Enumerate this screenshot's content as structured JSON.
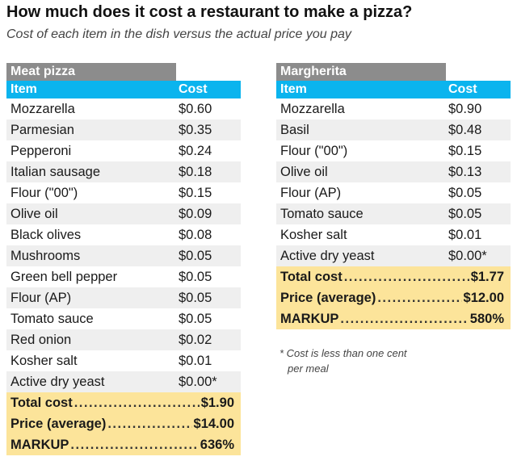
{
  "title": "How much does it cost a restaurant to make a pizza?",
  "subtitle": "Cost of each item in the dish versus the actual price you pay",
  "colors": {
    "header_bg": "#0bb4ee",
    "name_bg": "#8c8c8c",
    "total_bg": "#fce49a",
    "stripe_bg": "#efefef"
  },
  "meat": {
    "name": "Meat pizza",
    "col_item": "Item",
    "col_cost": "Cost",
    "items": [
      {
        "item": "Mozzarella",
        "cost": "$0.60"
      },
      {
        "item": "Parmesian",
        "cost": "$0.35"
      },
      {
        "item": "Pepperoni",
        "cost": "$0.24"
      },
      {
        "item": "Italian sausage",
        "cost": "$0.18"
      },
      {
        "item": "Flour (\"00\")",
        "cost": "$0.15"
      },
      {
        "item": "Olive oil",
        "cost": "$0.09"
      },
      {
        "item": "Black olives",
        "cost": "$0.08"
      },
      {
        "item": "Mushrooms",
        "cost": "$0.05"
      },
      {
        "item": "Green bell pepper",
        "cost": "$0.05"
      },
      {
        "item": "Flour (AP)",
        "cost": "$0.05"
      },
      {
        "item": "Tomato sauce",
        "cost": "$0.05"
      },
      {
        "item": "Red onion",
        "cost": "$0.02"
      },
      {
        "item": "Kosher salt",
        "cost": "$0.01"
      },
      {
        "item": "Active dry yeast",
        "cost": "$0.00*"
      }
    ],
    "totals": [
      {
        "label": "Total cost",
        "value": "$1.90"
      },
      {
        "label": "Price (average)",
        "value": "$14.00"
      },
      {
        "label": "MARKUP",
        "value": "636%"
      }
    ]
  },
  "margherita": {
    "name": "Margherita",
    "col_item": "Item",
    "col_cost": "Cost",
    "items": [
      {
        "item": "Mozzarella",
        "cost": "$0.90"
      },
      {
        "item": "Basil",
        "cost": "$0.48"
      },
      {
        "item": "Flour (\"00\")",
        "cost": "$0.15"
      },
      {
        "item": "Olive oil",
        "cost": "$0.13"
      },
      {
        "item": "Flour (AP)",
        "cost": "$0.05"
      },
      {
        "item": "Tomato sauce",
        "cost": "$0.05"
      },
      {
        "item": "Kosher salt",
        "cost": "$0.01"
      },
      {
        "item": "Active dry yeast",
        "cost": "$0.00*"
      }
    ],
    "totals": [
      {
        "label": "Total cost",
        "value": "$1.77"
      },
      {
        "label": "Price (average)",
        "value": "$12.00"
      },
      {
        "label": "MARKUP",
        "value": "580%"
      }
    ]
  },
  "footnote": {
    "line1": "* Cost is less than one cent",
    "line2": "per meal"
  }
}
